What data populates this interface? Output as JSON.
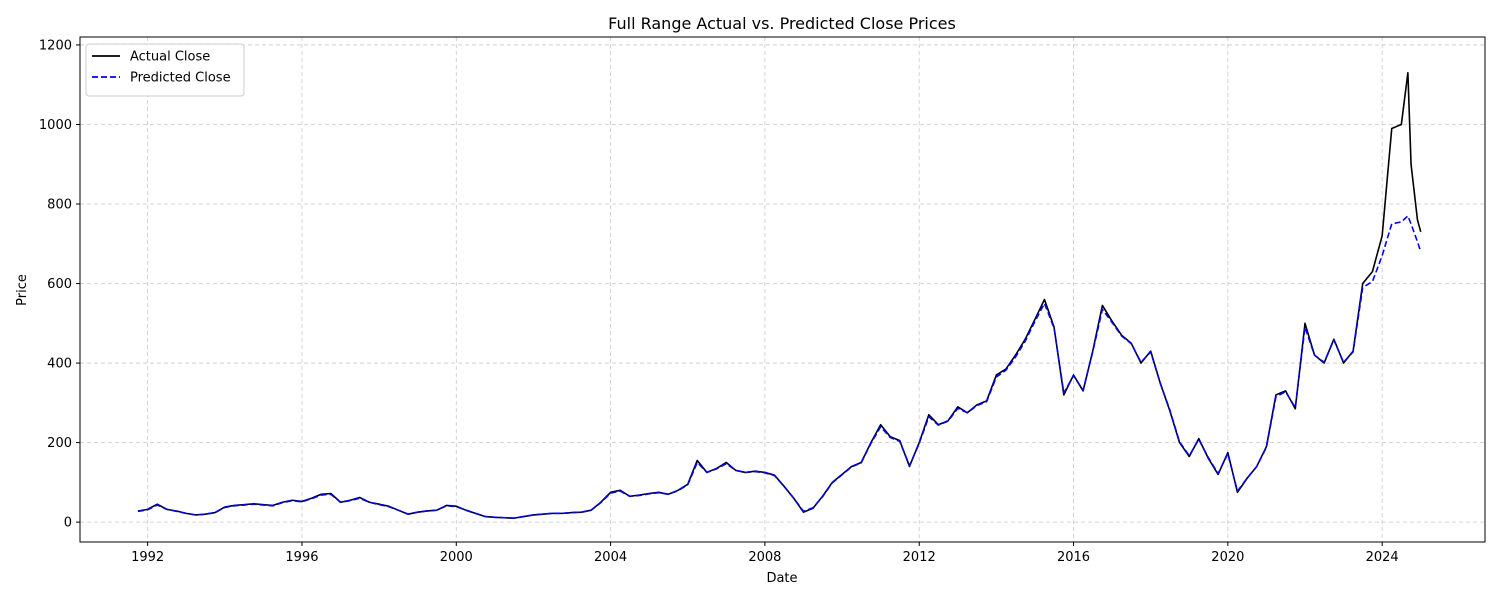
{
  "chart_data": {
    "type": "line",
    "title": "Full Range Actual vs. Predicted Close Prices",
    "xlabel": "Date",
    "ylabel": "Price",
    "xlim": [
      "1990-04-01",
      "2026-09-01"
    ],
    "ylim": [
      -50,
      1220
    ],
    "x_ticks": [
      "1992",
      "1996",
      "2000",
      "2004",
      "2008",
      "2012",
      "2016",
      "2020",
      "2024"
    ],
    "y_ticks": [
      0,
      200,
      400,
      600,
      800,
      1000,
      1200
    ],
    "grid": true,
    "legend_position": "top-left",
    "series": [
      {
        "name": "Actual Close",
        "color": "#000000",
        "style": "solid",
        "points": [
          [
            "1991-10-01",
            28
          ],
          [
            "1992-01-01",
            32
          ],
          [
            "1992-04-01",
            45
          ],
          [
            "1992-07-01",
            32
          ],
          [
            "1992-10-01",
            28
          ],
          [
            "1993-01-01",
            22
          ],
          [
            "1993-04-01",
            18
          ],
          [
            "1993-07-01",
            20
          ],
          [
            "1993-10-01",
            24
          ],
          [
            "1994-01-01",
            38
          ],
          [
            "1994-04-01",
            42
          ],
          [
            "1994-07-01",
            44
          ],
          [
            "1994-10-01",
            46
          ],
          [
            "1995-01-01",
            44
          ],
          [
            "1995-04-01",
            42
          ],
          [
            "1995-07-01",
            50
          ],
          [
            "1995-10-01",
            55
          ],
          [
            "1996-01-01",
            52
          ],
          [
            "1996-04-01",
            60
          ],
          [
            "1996-07-01",
            70
          ],
          [
            "1996-10-01",
            72
          ],
          [
            "1997-01-01",
            50
          ],
          [
            "1997-04-01",
            55
          ],
          [
            "1997-07-01",
            62
          ],
          [
            "1997-10-01",
            50
          ],
          [
            "1998-01-01",
            45
          ],
          [
            "1998-04-01",
            40
          ],
          [
            "1998-07-01",
            30
          ],
          [
            "1998-10-01",
            20
          ],
          [
            "1999-01-01",
            25
          ],
          [
            "1999-04-01",
            28
          ],
          [
            "1999-07-01",
            30
          ],
          [
            "1999-10-01",
            42
          ],
          [
            "2000-01-01",
            40
          ],
          [
            "2000-04-01",
            30
          ],
          [
            "2000-07-01",
            22
          ],
          [
            "2000-10-01",
            14
          ],
          [
            "2001-01-01",
            12
          ],
          [
            "2001-04-01",
            11
          ],
          [
            "2001-07-01",
            10
          ],
          [
            "2001-10-01",
            14
          ],
          [
            "2002-01-01",
            18
          ],
          [
            "2002-04-01",
            20
          ],
          [
            "2002-07-01",
            22
          ],
          [
            "2002-10-01",
            22
          ],
          [
            "2003-01-01",
            24
          ],
          [
            "2003-04-01",
            25
          ],
          [
            "2003-07-01",
            30
          ],
          [
            "2003-10-01",
            50
          ],
          [
            "2004-01-01",
            75
          ],
          [
            "2004-04-01",
            80
          ],
          [
            "2004-07-01",
            65
          ],
          [
            "2004-10-01",
            68
          ],
          [
            "2005-01-01",
            72
          ],
          [
            "2005-04-01",
            75
          ],
          [
            "2005-07-01",
            70
          ],
          [
            "2005-10-01",
            80
          ],
          [
            "2006-01-01",
            95
          ],
          [
            "2006-04-01",
            155
          ],
          [
            "2006-07-01",
            125
          ],
          [
            "2006-10-01",
            135
          ],
          [
            "2007-01-01",
            150
          ],
          [
            "2007-04-01",
            130
          ],
          [
            "2007-07-01",
            125
          ],
          [
            "2007-10-01",
            128
          ],
          [
            "2008-01-01",
            125
          ],
          [
            "2008-04-01",
            118
          ],
          [
            "2008-07-01",
            90
          ],
          [
            "2008-10-01",
            60
          ],
          [
            "2009-01-01",
            25
          ],
          [
            "2009-04-01",
            35
          ],
          [
            "2009-07-01",
            65
          ],
          [
            "2009-10-01",
            100
          ],
          [
            "2010-01-01",
            120
          ],
          [
            "2010-04-01",
            140
          ],
          [
            "2010-07-01",
            150
          ],
          [
            "2010-10-01",
            200
          ],
          [
            "2011-01-01",
            245
          ],
          [
            "2011-04-01",
            215
          ],
          [
            "2011-07-01",
            205
          ],
          [
            "2011-10-01",
            140
          ],
          [
            "2012-01-01",
            200
          ],
          [
            "2012-04-01",
            270
          ],
          [
            "2012-07-01",
            245
          ],
          [
            "2012-10-01",
            255
          ],
          [
            "2013-01-01",
            290
          ],
          [
            "2013-04-01",
            275
          ],
          [
            "2013-07-01",
            295
          ],
          [
            "2013-10-01",
            305
          ],
          [
            "2014-01-01",
            370
          ],
          [
            "2014-04-01",
            385
          ],
          [
            "2014-07-01",
            420
          ],
          [
            "2014-10-01",
            460
          ],
          [
            "2015-01-01",
            510
          ],
          [
            "2015-04-01",
            560
          ],
          [
            "2015-07-01",
            490
          ],
          [
            "2015-10-01",
            320
          ],
          [
            "2016-01-01",
            370
          ],
          [
            "2016-04-01",
            330
          ],
          [
            "2016-07-01",
            430
          ],
          [
            "2016-10-01",
            545
          ],
          [
            "2017-01-01",
            505
          ],
          [
            "2017-04-01",
            470
          ],
          [
            "2017-07-01",
            450
          ],
          [
            "2017-10-01",
            400
          ],
          [
            "2018-01-01",
            430
          ],
          [
            "2018-04-01",
            350
          ],
          [
            "2018-07-01",
            280
          ],
          [
            "2018-10-01",
            200
          ],
          [
            "2019-01-01",
            165
          ],
          [
            "2019-04-01",
            210
          ],
          [
            "2019-07-01",
            160
          ],
          [
            "2019-10-01",
            120
          ],
          [
            "2020-01-01",
            175
          ],
          [
            "2020-04-01",
            75
          ],
          [
            "2020-07-01",
            110
          ],
          [
            "2020-10-01",
            140
          ],
          [
            "2021-01-01",
            190
          ],
          [
            "2021-04-01",
            320
          ],
          [
            "2021-07-01",
            330
          ],
          [
            "2021-10-01",
            285
          ],
          [
            "2022-01-01",
            500
          ],
          [
            "2022-04-01",
            420
          ],
          [
            "2022-07-01",
            400
          ],
          [
            "2022-10-01",
            460
          ],
          [
            "2023-01-01",
            400
          ],
          [
            "2023-04-01",
            430
          ],
          [
            "2023-07-01",
            600
          ],
          [
            "2023-10-01",
            630
          ],
          [
            "2024-01-01",
            720
          ],
          [
            "2024-04-01",
            990
          ],
          [
            "2024-07-01",
            1000
          ],
          [
            "2024-09-01",
            1130
          ],
          [
            "2024-10-01",
            900
          ],
          [
            "2024-12-01",
            760
          ],
          [
            "2025-01-01",
            730
          ]
        ]
      },
      {
        "name": "Predicted Close",
        "color": "#0000ff",
        "style": "dashed",
        "points": [
          [
            "1991-10-01",
            27
          ],
          [
            "1992-01-01",
            31
          ],
          [
            "1992-04-01",
            43
          ],
          [
            "1992-07-01",
            32
          ],
          [
            "1992-10-01",
            27
          ],
          [
            "1993-01-01",
            22
          ],
          [
            "1993-04-01",
            18
          ],
          [
            "1993-07-01",
            20
          ],
          [
            "1993-10-01",
            24
          ],
          [
            "1994-01-01",
            37
          ],
          [
            "1994-04-01",
            41
          ],
          [
            "1994-07-01",
            43
          ],
          [
            "1994-10-01",
            45
          ],
          [
            "1995-01-01",
            43
          ],
          [
            "1995-04-01",
            41
          ],
          [
            "1995-07-01",
            49
          ],
          [
            "1995-10-01",
            54
          ],
          [
            "1996-01-01",
            51
          ],
          [
            "1996-04-01",
            59
          ],
          [
            "1996-07-01",
            68
          ],
          [
            "1996-10-01",
            70
          ],
          [
            "1997-01-01",
            50
          ],
          [
            "1997-04-01",
            54
          ],
          [
            "1997-07-01",
            60
          ],
          [
            "1997-10-01",
            50
          ],
          [
            "1998-01-01",
            44
          ],
          [
            "1998-04-01",
            39
          ],
          [
            "1998-07-01",
            30
          ],
          [
            "1998-10-01",
            20
          ],
          [
            "1999-01-01",
            25
          ],
          [
            "1999-04-01",
            28
          ],
          [
            "1999-07-01",
            30
          ],
          [
            "1999-10-01",
            41
          ],
          [
            "2000-01-01",
            39
          ],
          [
            "2000-04-01",
            30
          ],
          [
            "2000-07-01",
            22
          ],
          [
            "2000-10-01",
            14
          ],
          [
            "2001-01-01",
            12
          ],
          [
            "2001-04-01",
            11
          ],
          [
            "2001-07-01",
            10
          ],
          [
            "2001-10-01",
            14
          ],
          [
            "2002-01-01",
            18
          ],
          [
            "2002-04-01",
            20
          ],
          [
            "2002-07-01",
            22
          ],
          [
            "2002-10-01",
            22
          ],
          [
            "2003-01-01",
            24
          ],
          [
            "2003-04-01",
            25
          ],
          [
            "2003-07-01",
            30
          ],
          [
            "2003-10-01",
            49
          ],
          [
            "2004-01-01",
            73
          ],
          [
            "2004-04-01",
            78
          ],
          [
            "2004-07-01",
            65
          ],
          [
            "2004-10-01",
            67
          ],
          [
            "2005-01-01",
            71
          ],
          [
            "2005-04-01",
            74
          ],
          [
            "2005-07-01",
            70
          ],
          [
            "2005-10-01",
            79
          ],
          [
            "2006-01-01",
            94
          ],
          [
            "2006-04-01",
            150
          ],
          [
            "2006-07-01",
            125
          ],
          [
            "2006-10-01",
            134
          ],
          [
            "2007-01-01",
            147
          ],
          [
            "2007-04-01",
            130
          ],
          [
            "2007-07-01",
            125
          ],
          [
            "2007-10-01",
            127
          ],
          [
            "2008-01-01",
            124
          ],
          [
            "2008-04-01",
            117
          ],
          [
            "2008-07-01",
            90
          ],
          [
            "2008-10-01",
            60
          ],
          [
            "2009-01-01",
            27
          ],
          [
            "2009-04-01",
            36
          ],
          [
            "2009-07-01",
            64
          ],
          [
            "2009-10-01",
            99
          ],
          [
            "2010-01-01",
            119
          ],
          [
            "2010-04-01",
            139
          ],
          [
            "2010-07-01",
            149
          ],
          [
            "2010-10-01",
            198
          ],
          [
            "2011-01-01",
            240
          ],
          [
            "2011-04-01",
            213
          ],
          [
            "2011-07-01",
            203
          ],
          [
            "2011-10-01",
            142
          ],
          [
            "2012-01-01",
            198
          ],
          [
            "2012-04-01",
            265
          ],
          [
            "2012-07-01",
            244
          ],
          [
            "2012-10-01",
            254
          ],
          [
            "2013-01-01",
            286
          ],
          [
            "2013-04-01",
            275
          ],
          [
            "2013-07-01",
            293
          ],
          [
            "2013-10-01",
            303
          ],
          [
            "2014-01-01",
            365
          ],
          [
            "2014-04-01",
            382
          ],
          [
            "2014-07-01",
            415
          ],
          [
            "2014-10-01",
            455
          ],
          [
            "2015-01-01",
            505
          ],
          [
            "2015-04-01",
            550
          ],
          [
            "2015-07-01",
            488
          ],
          [
            "2015-10-01",
            325
          ],
          [
            "2016-01-01",
            368
          ],
          [
            "2016-04-01",
            332
          ],
          [
            "2016-07-01",
            428
          ],
          [
            "2016-10-01",
            535
          ],
          [
            "2017-01-01",
            502
          ],
          [
            "2017-04-01",
            468
          ],
          [
            "2017-07-01",
            449
          ],
          [
            "2017-10-01",
            402
          ],
          [
            "2018-01-01",
            428
          ],
          [
            "2018-04-01",
            350
          ],
          [
            "2018-07-01",
            282
          ],
          [
            "2018-10-01",
            202
          ],
          [
            "2019-01-01",
            167
          ],
          [
            "2019-04-01",
            208
          ],
          [
            "2019-07-01",
            162
          ],
          [
            "2019-10-01",
            122
          ],
          [
            "2020-01-01",
            172
          ],
          [
            "2020-04-01",
            78
          ],
          [
            "2020-07-01",
            110
          ],
          [
            "2020-10-01",
            140
          ],
          [
            "2021-01-01",
            188
          ],
          [
            "2021-04-01",
            315
          ],
          [
            "2021-07-01",
            328
          ],
          [
            "2021-10-01",
            288
          ],
          [
            "2022-01-01",
            490
          ],
          [
            "2022-04-01",
            420
          ],
          [
            "2022-07-01",
            402
          ],
          [
            "2022-10-01",
            458
          ],
          [
            "2023-01-01",
            402
          ],
          [
            "2023-04-01",
            428
          ],
          [
            "2023-07-01",
            590
          ],
          [
            "2023-10-01",
            605
          ],
          [
            "2024-01-01",
            670
          ],
          [
            "2024-04-01",
            750
          ],
          [
            "2024-07-01",
            755
          ],
          [
            "2024-09-01",
            770
          ],
          [
            "2024-10-01",
            750
          ],
          [
            "2024-12-01",
            705
          ],
          [
            "2025-01-01",
            680
          ]
        ]
      }
    ]
  }
}
